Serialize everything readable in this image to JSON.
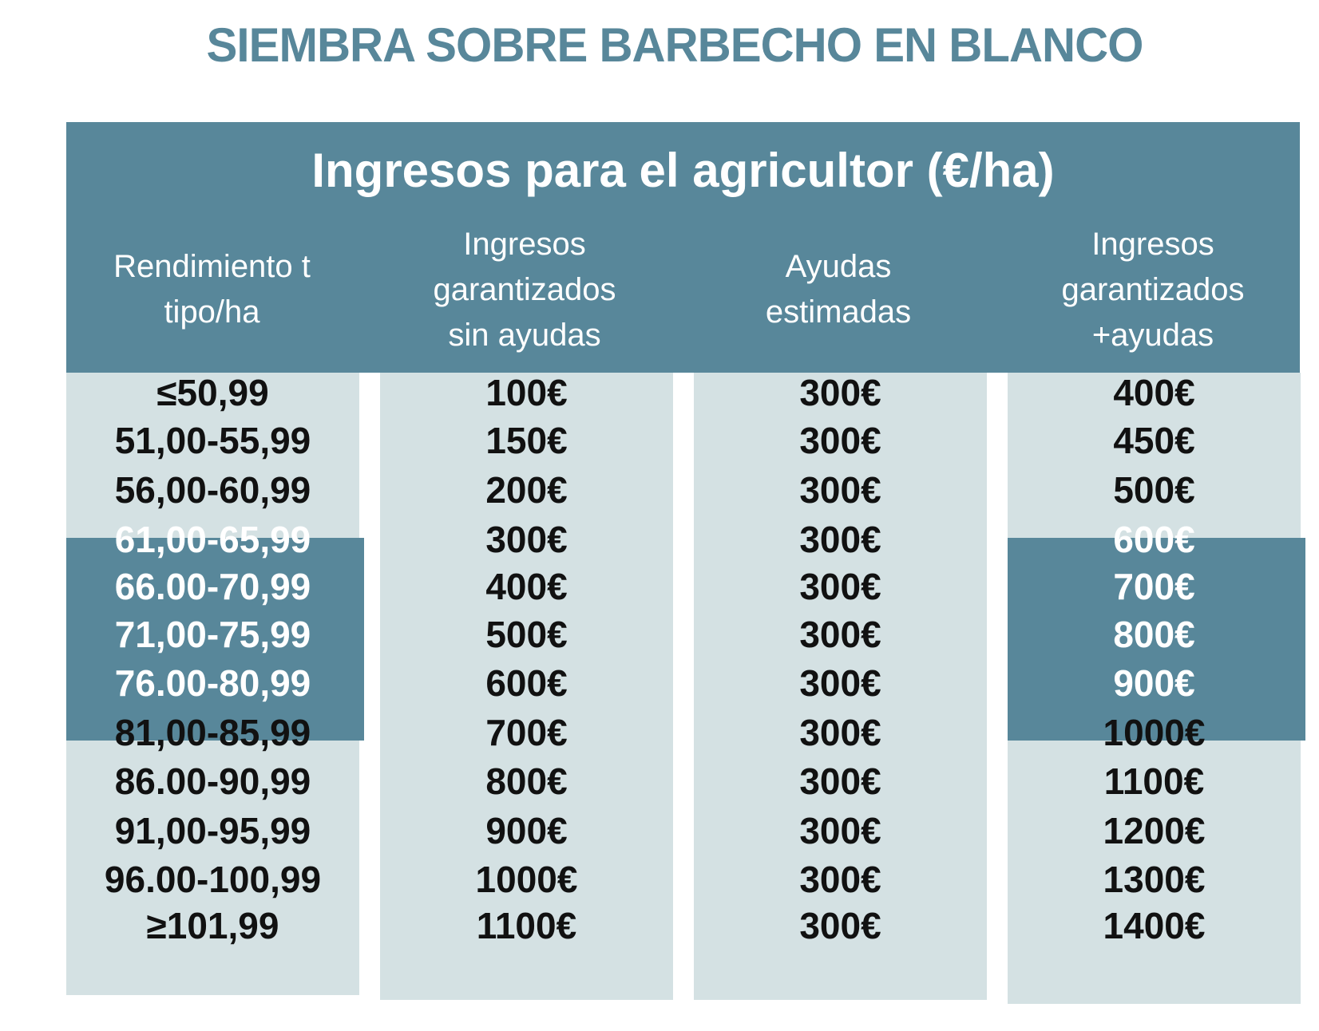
{
  "title": "SIEMBRA SOBRE BARBECHO EN BLANCO",
  "table": {
    "heading": "Ingresos para el agricultor (€/ha)",
    "columns": [
      {
        "lines": [
          "Rendimiento t",
          "tipo/ha"
        ]
      },
      {
        "lines": [
          "Ingresos",
          "garantizados",
          "sin ayudas"
        ]
      },
      {
        "lines": [
          "Ayudas",
          "estimadas"
        ]
      },
      {
        "lines": [
          "Ingresos",
          "garantizados",
          "+ayudas"
        ]
      }
    ],
    "rows": [
      [
        "≤50,99",
        "100€",
        "300€",
        "400€"
      ],
      [
        "51,00-55,99",
        "150€",
        "300€",
        "450€"
      ],
      [
        "56,00-60,99",
        "200€",
        "300€",
        "500€"
      ],
      [
        "61,00-65,99",
        "300€",
        "300€",
        "600€"
      ],
      [
        "66.00-70,99",
        "400€",
        "300€",
        "700€"
      ],
      [
        "71,00-75,99",
        "500€",
        "300€",
        "800€"
      ],
      [
        "76.00-80,99",
        "600€",
        "300€",
        "900€"
      ],
      [
        "81,00-85,99",
        "700€",
        "300€",
        "1000€"
      ],
      [
        "86.00-90,99",
        "800€",
        "300€",
        "1100€"
      ],
      [
        "91,00-95,99",
        "900€",
        "300€",
        "1200€"
      ],
      [
        "96.00-100,99",
        "1000€",
        "300€",
        "1300€"
      ],
      [
        "≥101,99",
        "1100€",
        "300€",
        "1400€"
      ]
    ],
    "highlight_rows": [
      3,
      4,
      5,
      6
    ],
    "highlight_columns": [
      0,
      3
    ],
    "colors": {
      "accent": "#58879a",
      "cell_background": "#d4e1e3",
      "text": "#111111",
      "header_text": "#ffffff"
    }
  }
}
